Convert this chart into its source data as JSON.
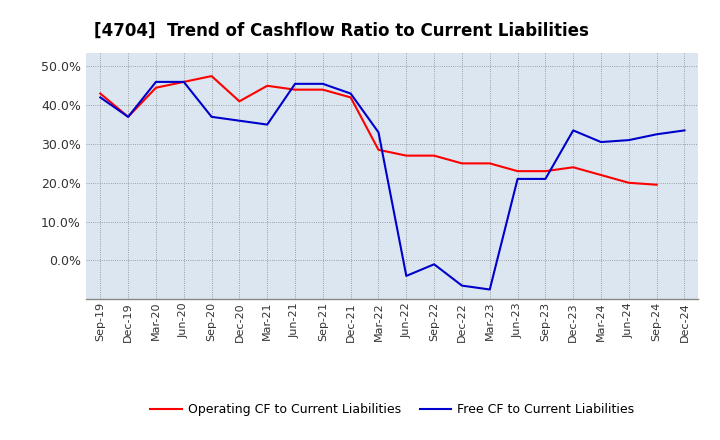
{
  "title": "[4704]  Trend of Cashflow Ratio to Current Liabilities",
  "x_labels": [
    "Sep-19",
    "Dec-19",
    "Mar-20",
    "Jun-20",
    "Sep-20",
    "Dec-20",
    "Mar-21",
    "Jun-21",
    "Sep-21",
    "Dec-21",
    "Mar-22",
    "Jun-22",
    "Sep-22",
    "Dec-22",
    "Mar-23",
    "Jun-23",
    "Sep-23",
    "Dec-23",
    "Mar-24",
    "Jun-24",
    "Sep-24",
    "Dec-24"
  ],
  "operating_cf": [
    0.43,
    0.37,
    0.445,
    0.46,
    0.475,
    0.41,
    0.45,
    0.44,
    0.44,
    0.42,
    0.285,
    0.27,
    0.27,
    0.25,
    0.25,
    0.23,
    0.23,
    0.24,
    0.22,
    0.2,
    0.195,
    null
  ],
  "free_cf": [
    0.42,
    0.37,
    0.46,
    0.46,
    0.37,
    0.36,
    0.35,
    0.455,
    0.455,
    0.43,
    0.33,
    -0.04,
    -0.01,
    -0.065,
    -0.075,
    0.21,
    0.21,
    0.335,
    0.305,
    0.31,
    0.325,
    0.335
  ],
  "operating_color": "#ff0000",
  "free_color": "#0000cc",
  "ylim": [
    -0.1,
    0.535
  ],
  "yticks": [
    0.0,
    0.1,
    0.2,
    0.3,
    0.4,
    0.5
  ],
  "background_color": "#ffffff",
  "plot_bg_color": "#dce6f0",
  "grid_color": "#888888",
  "legend_op": "Operating CF to Current Liabilities",
  "legend_free": "Free CF to Current Liabilities",
  "title_fontsize": 12,
  "tick_fontsize": 8,
  "ytick_fontsize": 9
}
